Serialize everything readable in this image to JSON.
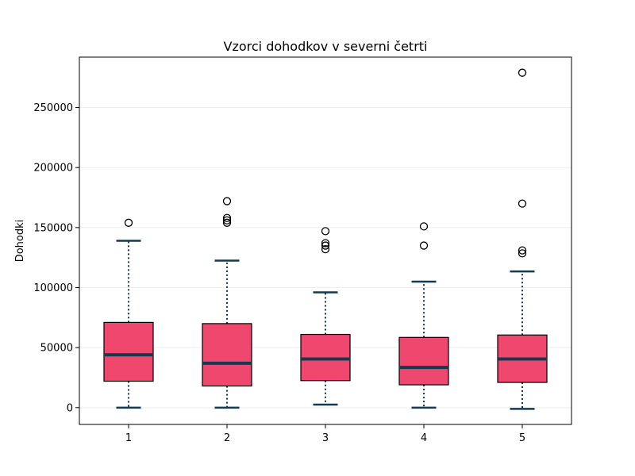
{
  "chart_data": {
    "type": "box",
    "title": "Vzorci dohodkov v severni četrti",
    "xlabel": "",
    "ylabel": "Dohodki",
    "categories": [
      "1",
      "2",
      "3",
      "4",
      "5"
    ],
    "ylim": [
      -14000,
      292000
    ],
    "yticks": [
      0,
      50000,
      100000,
      150000,
      200000,
      250000
    ],
    "ytick_labels": [
      "0",
      "50000",
      "100000",
      "150000",
      "200000",
      "250000"
    ],
    "grid": "y",
    "colors": {
      "box_fill": "#f0476e",
      "box_edge": "#000000",
      "median": "#133a4e",
      "whisker": "#133a4e",
      "cap": "#133a4e",
      "flier_edge": "#000000",
      "grid": "#eeeeee"
    },
    "boxes": [
      {
        "category": "1",
        "whisker_low": 0,
        "q1": 22000,
        "median": 44000,
        "q3": 71000,
        "whisker_high": 139000,
        "fliers": [
          154000
        ]
      },
      {
        "category": "2",
        "whisker_low": 0,
        "q1": 18000,
        "median": 37000,
        "q3": 70000,
        "whisker_high": 122500,
        "fliers": [
          172000,
          158000,
          156000,
          154000
        ]
      },
      {
        "category": "3",
        "whisker_low": 2500,
        "q1": 22500,
        "median": 40500,
        "q3": 61000,
        "whisker_high": 96000,
        "fliers": [
          147000,
          137000,
          135000,
          132000
        ]
      },
      {
        "category": "4",
        "whisker_low": 0,
        "q1": 19000,
        "median": 33500,
        "q3": 58500,
        "whisker_high": 105000,
        "fliers": [
          151000,
          135000
        ]
      },
      {
        "category": "5",
        "whisker_low": -1000,
        "q1": 21000,
        "median": 40500,
        "q3": 60500,
        "whisker_high": 113500,
        "fliers": [
          279000,
          170000,
          131000,
          128500
        ]
      }
    ]
  }
}
